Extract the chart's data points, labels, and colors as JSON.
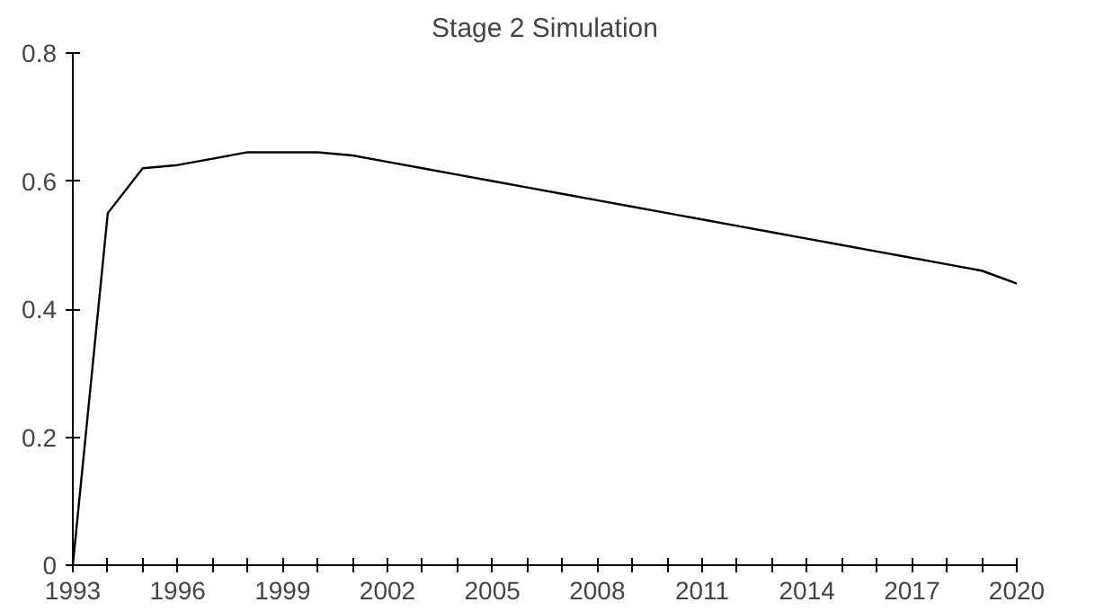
{
  "chart_data": {
    "type": "line",
    "title": "Stage 2 Simulation",
    "x": [
      1993,
      1994,
      1995,
      1996,
      1997,
      1998,
      1999,
      2000,
      2001,
      2002,
      2003,
      2004,
      2005,
      2006,
      2007,
      2008,
      2009,
      2010,
      2011,
      2012,
      2013,
      2014,
      2015,
      2016,
      2017,
      2018,
      2019,
      2020
    ],
    "series": [
      {
        "color": "#000000",
        "values": [
          0,
          0.55,
          0.62,
          0.625,
          0.635,
          0.645,
          0.645,
          0.645,
          0.64,
          0.63,
          0.62,
          0.61,
          0.6,
          0.59,
          0.58,
          0.57,
          0.56,
          0.55,
          0.54,
          0.53,
          0.52,
          0.51,
          0.5,
          0.49,
          0.48,
          0.47,
          0.46,
          0.44
        ]
      }
    ],
    "xlim": [
      1993,
      2020
    ],
    "xticks": [
      1993,
      {
        "value": 1994,
        "label": null
      },
      {
        "value": 1995,
        "label": null
      },
      1996,
      {
        "value": 1997,
        "label": null
      },
      {
        "value": 1998,
        "label": null
      },
      1999,
      {
        "value": 2000,
        "label": null
      },
      {
        "value": 2001,
        "label": null
      },
      2002,
      {
        "value": 2003,
        "label": null
      },
      {
        "value": 2004,
        "label": null
      },
      2005,
      {
        "value": 2006,
        "label": null
      },
      {
        "value": 2007,
        "label": null
      },
      2008,
      {
        "value": 2009,
        "label": null
      },
      {
        "value": 2010,
        "label": null
      },
      2011,
      {
        "value": 2012,
        "label": null
      },
      {
        "value": 2013,
        "label": null
      },
      2014,
      {
        "value": 2015,
        "label": null
      },
      {
        "value": 2016,
        "label": null
      },
      2017,
      {
        "value": 2018,
        "label": null
      },
      {
        "value": 2019,
        "label": null
      },
      2020
    ],
    "ylim": [
      0,
      0.8
    ],
    "yticks": [
      0,
      0.2,
      0.4,
      0.6,
      0.8
    ],
    "grid": false,
    "marker": "none",
    "line_style": "solid"
  }
}
